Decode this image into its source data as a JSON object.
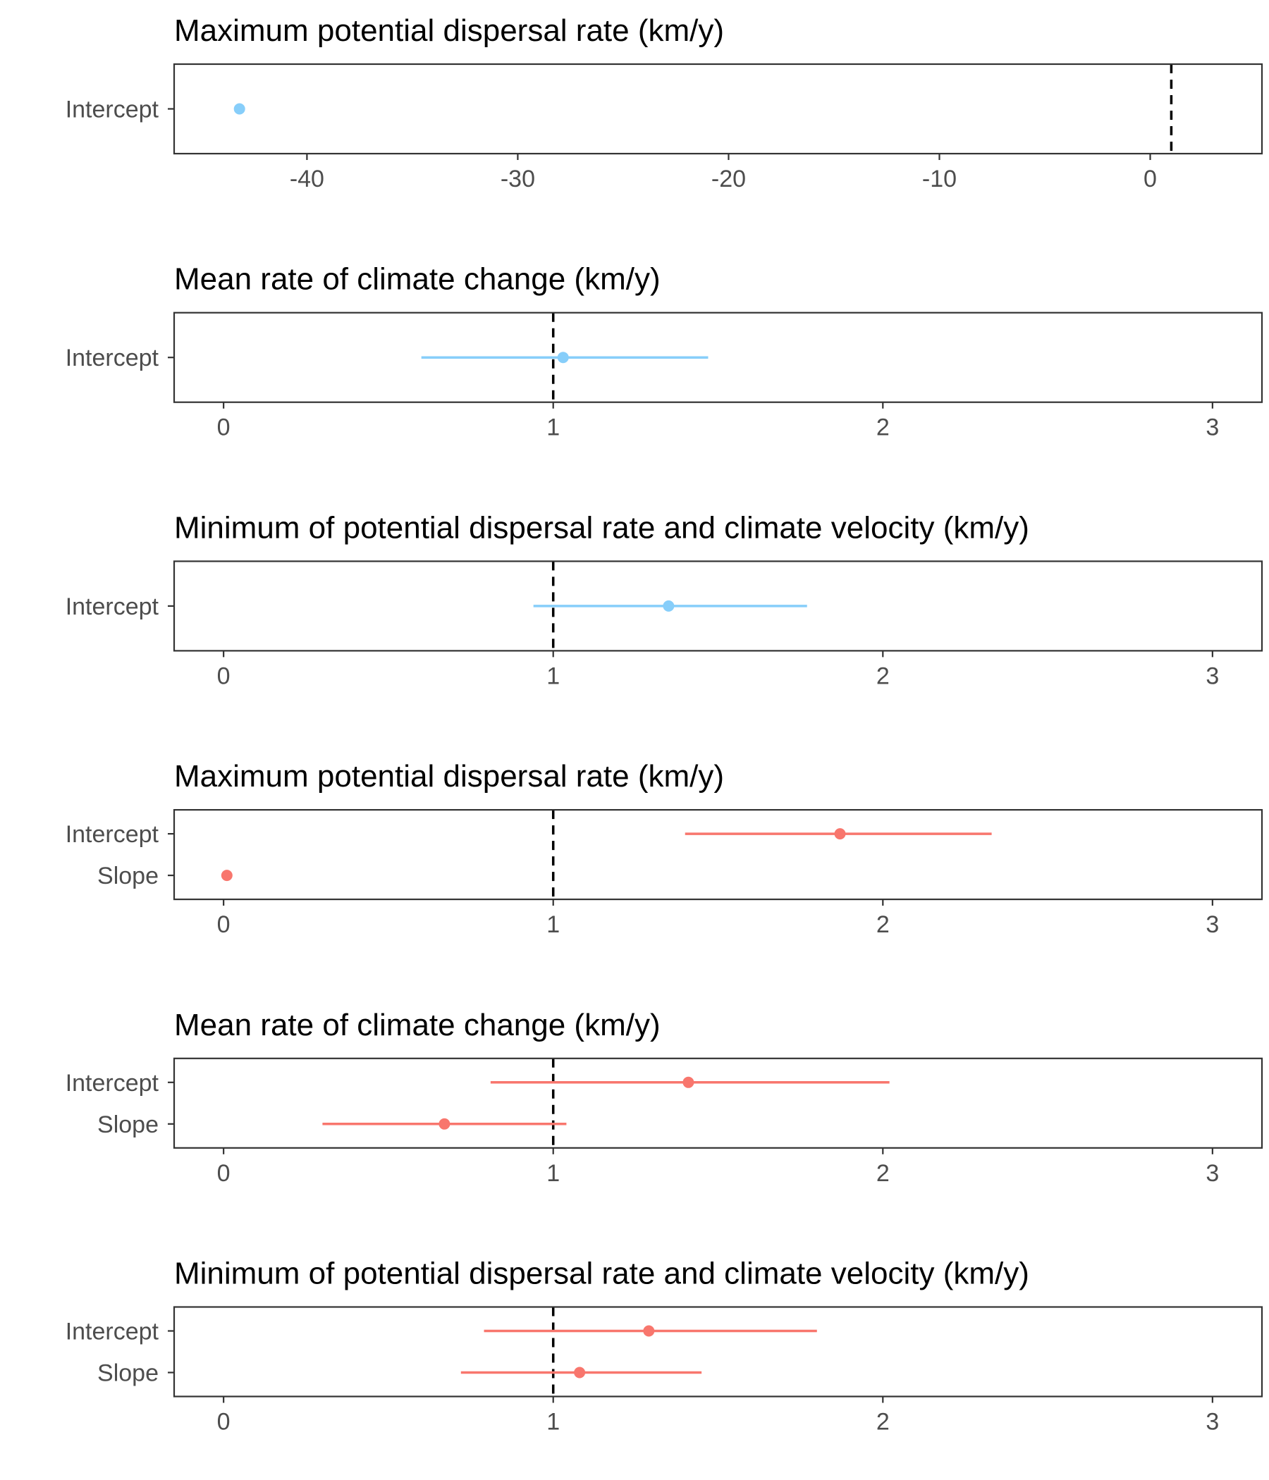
{
  "colors": {
    "blue": "#87CEFA",
    "red": "#F8766D",
    "reference_line": "#000000",
    "frame": "#333333",
    "axis_text": "#4d4d4d"
  },
  "chart_data": [
    {
      "type": "forest",
      "title": "Maximum potential dispersal rate (km/y)",
      "color": "#87CEFA",
      "categories": [
        "Intercept"
      ],
      "xlim": [
        -46.3,
        5.3
      ],
      "xticks": [
        -40,
        -30,
        -20,
        -10,
        0
      ],
      "xtick_labels": [
        "-40",
        "-30",
        "-20",
        "-10",
        "0"
      ],
      "reference_line": 1,
      "points": [
        {
          "label": "Intercept",
          "estimate": -43.2,
          "lower": null,
          "upper": null
        }
      ]
    },
    {
      "type": "forest",
      "title": "Mean rate of climate change (km/y)",
      "color": "#87CEFA",
      "categories": [
        "Intercept"
      ],
      "xlim": [
        -0.15,
        3.15
      ],
      "xticks": [
        0,
        1,
        2,
        3
      ],
      "xtick_labels": [
        "0",
        "1",
        "2",
        "3"
      ],
      "reference_line": 1,
      "points": [
        {
          "label": "Intercept",
          "estimate": 1.03,
          "lower": 0.6,
          "upper": 1.47
        }
      ]
    },
    {
      "type": "forest",
      "title": "Minimum of potential dispersal rate and climate velocity (km/y)",
      "color": "#87CEFA",
      "categories": [
        "Intercept"
      ],
      "xlim": [
        -0.15,
        3.15
      ],
      "xticks": [
        0,
        1,
        2,
        3
      ],
      "xtick_labels": [
        "0",
        "1",
        "2",
        "3"
      ],
      "reference_line": 1,
      "points": [
        {
          "label": "Intercept",
          "estimate": 1.35,
          "lower": 0.94,
          "upper": 1.77
        }
      ]
    },
    {
      "type": "forest",
      "title": "Maximum potential dispersal rate (km/y)",
      "color": "#F8766D",
      "categories": [
        "Intercept",
        "Slope"
      ],
      "xlim": [
        -0.15,
        3.15
      ],
      "xticks": [
        0,
        1,
        2,
        3
      ],
      "xtick_labels": [
        "0",
        "1",
        "2",
        "3"
      ],
      "reference_line": 1,
      "points": [
        {
          "label": "Intercept",
          "estimate": 1.87,
          "lower": 1.4,
          "upper": 2.33
        },
        {
          "label": "Slope",
          "estimate": 0.01,
          "lower": null,
          "upper": null
        }
      ]
    },
    {
      "type": "forest",
      "title": "Mean rate of climate change (km/y)",
      "color": "#F8766D",
      "categories": [
        "Intercept",
        "Slope"
      ],
      "xlim": [
        -0.15,
        3.15
      ],
      "xticks": [
        0,
        1,
        2,
        3
      ],
      "xtick_labels": [
        "0",
        "1",
        "2",
        "3"
      ],
      "reference_line": 1,
      "points": [
        {
          "label": "Intercept",
          "estimate": 1.41,
          "lower": 0.81,
          "upper": 2.02
        },
        {
          "label": "Slope",
          "estimate": 0.67,
          "lower": 0.3,
          "upper": 1.04
        }
      ]
    },
    {
      "type": "forest",
      "title": "Minimum of potential dispersal rate and climate velocity (km/y)",
      "color": "#F8766D",
      "categories": [
        "Intercept",
        "Slope"
      ],
      "xlim": [
        -0.15,
        3.15
      ],
      "xticks": [
        0,
        1,
        2,
        3
      ],
      "xtick_labels": [
        "0",
        "1",
        "2",
        "3"
      ],
      "reference_line": 1,
      "points": [
        {
          "label": "Intercept",
          "estimate": 1.29,
          "lower": 0.79,
          "upper": 1.8
        },
        {
          "label": "Slope",
          "estimate": 1.08,
          "lower": 0.72,
          "upper": 1.45
        }
      ]
    }
  ]
}
